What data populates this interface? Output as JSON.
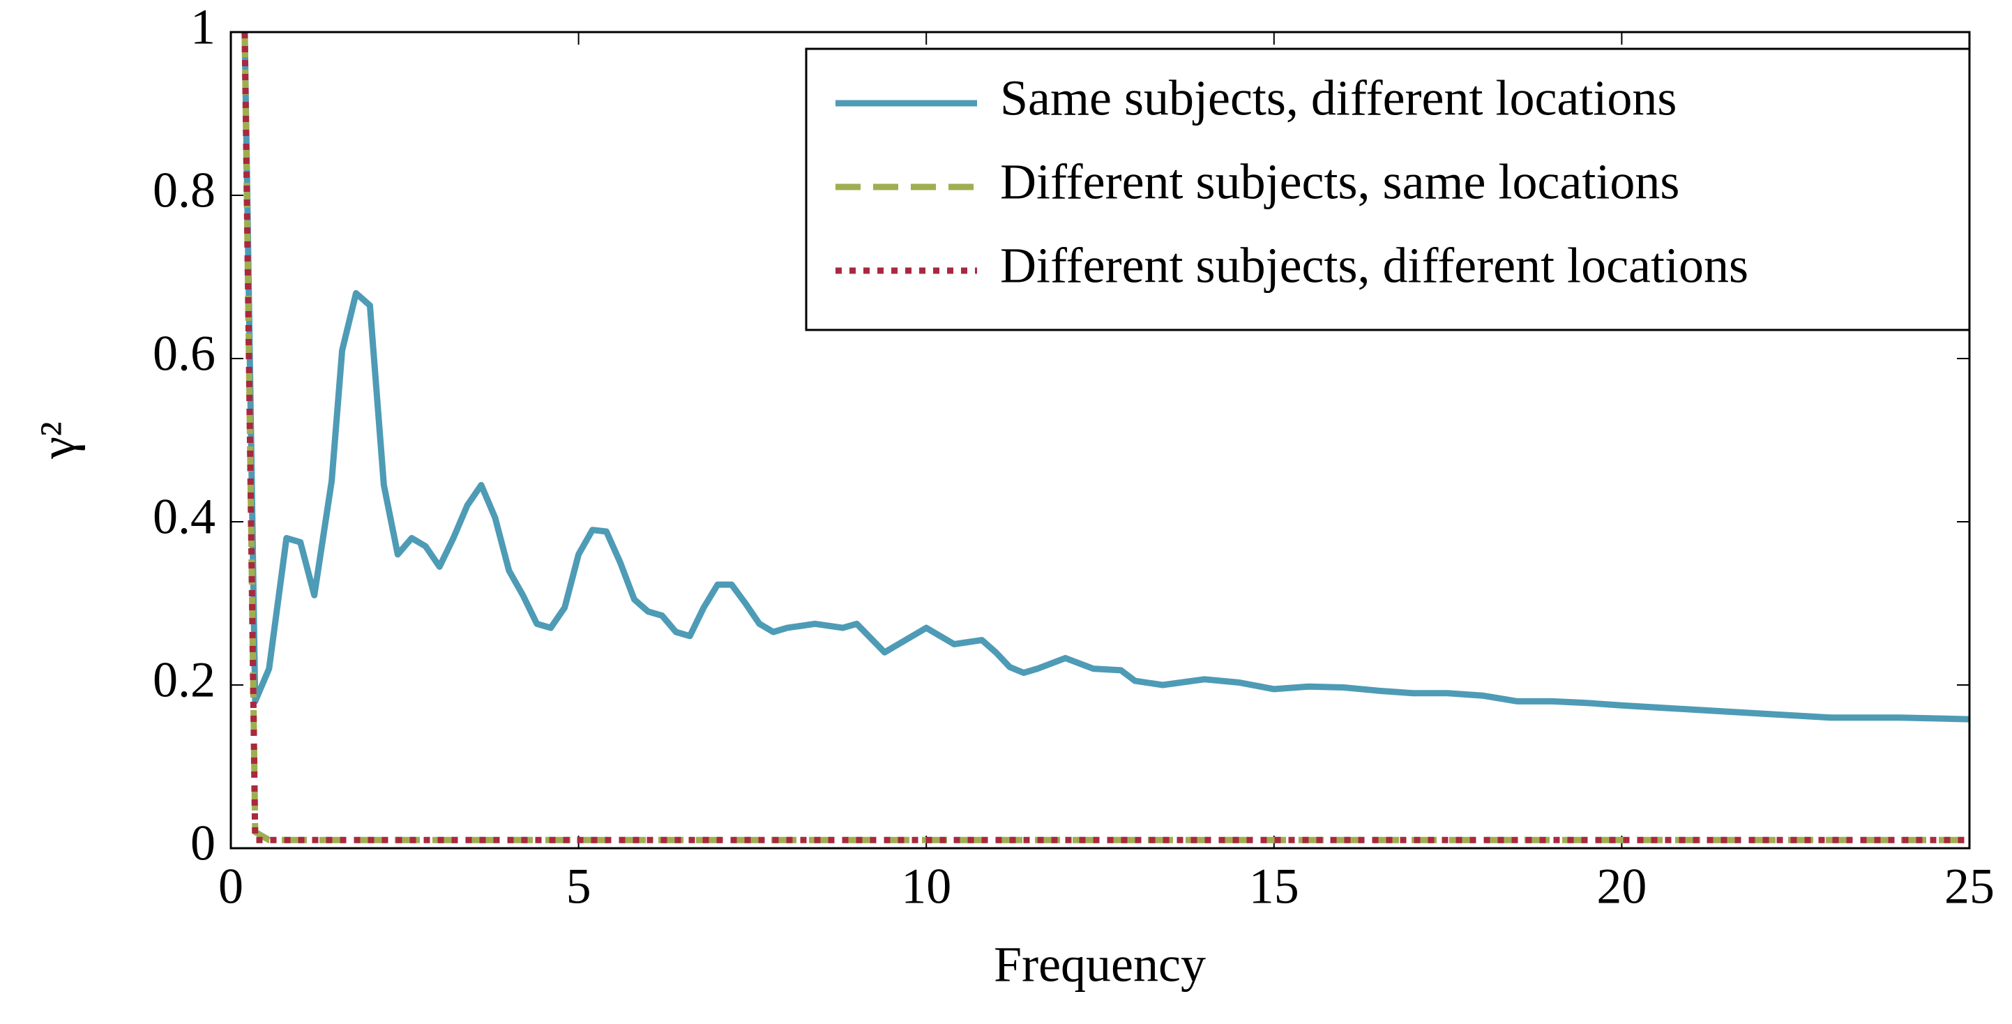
{
  "chart_data": {
    "type": "line",
    "xlabel": "Frequency",
    "ylabel": "γ²",
    "x": [
      0.2,
      0.35,
      0.55,
      0.8,
      1.0,
      1.2,
      1.45,
      1.6,
      1.8,
      2.0,
      2.2,
      2.4,
      2.6,
      2.8,
      3.0,
      3.2,
      3.4,
      3.6,
      3.8,
      4.0,
      4.2,
      4.4,
      4.6,
      4.8,
      5.0,
      5.2,
      5.4,
      5.6,
      5.8,
      6.0,
      6.2,
      6.4,
      6.6,
      6.8,
      7.0,
      7.2,
      7.4,
      7.6,
      7.8,
      8.0,
      8.4,
      8.8,
      9.0,
      9.4,
      9.6,
      10.0,
      10.4,
      10.8,
      11.0,
      11.2,
      11.4,
      11.6,
      12.0,
      12.4,
      12.8,
      13.0,
      13.4,
      14.0,
      14.5,
      15.0,
      15.5,
      16.0,
      16.5,
      17.0,
      17.5,
      18.0,
      18.5,
      19.0,
      19.5,
      20.0,
      21.0,
      22.0,
      23.0,
      24.0,
      25.0
    ],
    "series": [
      {
        "name": "Same subjects, different locations",
        "color": "#4e9bb6",
        "dash": "solid",
        "values": [
          1.0,
          0.18,
          0.22,
          0.38,
          0.375,
          0.31,
          0.45,
          0.61,
          0.68,
          0.665,
          0.445,
          0.36,
          0.38,
          0.37,
          0.345,
          0.38,
          0.42,
          0.445,
          0.405,
          0.34,
          0.31,
          0.275,
          0.27,
          0.295,
          0.36,
          0.39,
          0.388,
          0.35,
          0.305,
          0.29,
          0.285,
          0.265,
          0.26,
          0.295,
          0.323,
          0.323,
          0.3,
          0.275,
          0.265,
          0.27,
          0.275,
          0.27,
          0.275,
          0.24,
          0.25,
          0.27,
          0.25,
          0.255,
          0.24,
          0.222,
          0.215,
          0.22,
          0.233,
          0.22,
          0.218,
          0.205,
          0.2,
          0.207,
          0.203,
          0.195,
          0.198,
          0.197,
          0.193,
          0.19,
          0.19,
          0.187,
          0.18,
          0.18,
          0.178,
          0.175,
          0.17,
          0.165,
          0.16,
          0.16,
          0.158
        ]
      },
      {
        "name": "Different subjects, same locations",
        "color": "#9fae50",
        "dash": "dashed",
        "values": [
          1.0,
          0.02,
          0.01,
          0.01,
          0.01,
          0.01,
          0.01,
          0.01,
          0.01,
          0.01,
          0.01,
          0.01,
          0.01,
          0.01,
          0.01,
          0.01,
          0.01,
          0.01,
          0.01,
          0.01,
          0.01,
          0.01,
          0.01,
          0.01,
          0.01,
          0.01,
          0.01,
          0.01,
          0.01,
          0.01,
          0.01,
          0.01,
          0.01,
          0.01,
          0.01,
          0.01,
          0.01,
          0.01,
          0.01,
          0.01,
          0.01,
          0.01,
          0.01,
          0.01,
          0.01,
          0.01,
          0.01,
          0.01,
          0.01,
          0.01,
          0.01,
          0.01,
          0.01,
          0.01,
          0.01,
          0.01,
          0.01,
          0.01,
          0.01,
          0.01,
          0.01,
          0.01,
          0.01,
          0.01,
          0.01,
          0.01,
          0.01,
          0.01,
          0.01,
          0.01,
          0.01,
          0.01,
          0.01,
          0.01,
          0.01
        ]
      },
      {
        "name": "Different subjects, different locations",
        "color": "#a8293f",
        "dash": "dotted",
        "values": [
          1.0,
          0.01,
          0.01,
          0.01,
          0.01,
          0.01,
          0.01,
          0.01,
          0.01,
          0.01,
          0.01,
          0.01,
          0.01,
          0.01,
          0.01,
          0.01,
          0.01,
          0.01,
          0.01,
          0.01,
          0.01,
          0.01,
          0.01,
          0.01,
          0.01,
          0.01,
          0.01,
          0.01,
          0.01,
          0.01,
          0.01,
          0.01,
          0.01,
          0.01,
          0.01,
          0.01,
          0.01,
          0.01,
          0.01,
          0.01,
          0.01,
          0.01,
          0.01,
          0.01,
          0.01,
          0.01,
          0.01,
          0.01,
          0.01,
          0.01,
          0.01,
          0.01,
          0.01,
          0.01,
          0.01,
          0.01,
          0.01,
          0.01,
          0.01,
          0.01,
          0.01,
          0.01,
          0.01,
          0.01,
          0.01,
          0.01,
          0.01,
          0.01,
          0.01,
          0.01,
          0.01,
          0.01,
          0.01,
          0.01,
          0.01
        ]
      }
    ],
    "xlim": [
      0,
      25
    ],
    "ylim": [
      0,
      1
    ],
    "xticks": [
      0,
      5,
      10,
      15,
      20,
      25
    ],
    "yticks": [
      0,
      0.2,
      0.4,
      0.6,
      0.8,
      1
    ],
    "legend": "upper right"
  }
}
